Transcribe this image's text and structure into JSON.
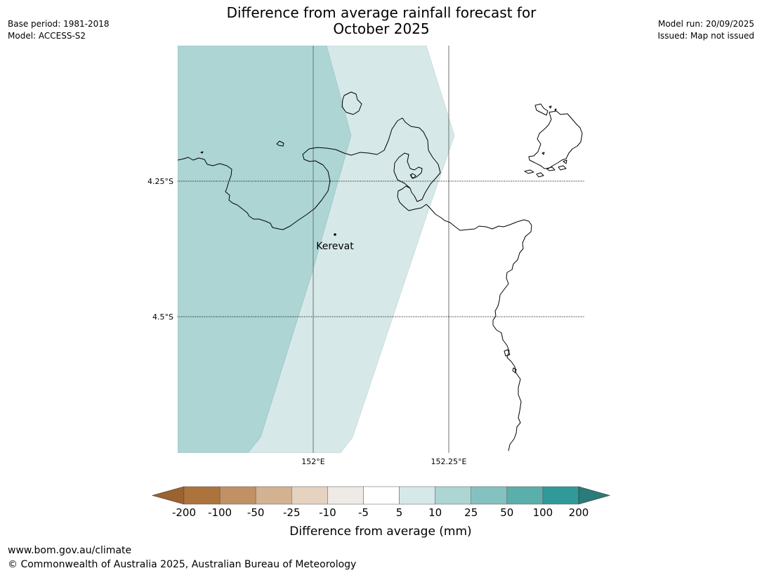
{
  "title_line1": "Difference from average rainfall forecast for",
  "title_line2": "October 2025",
  "meta": {
    "base_period": "Base period: 1981-2018",
    "model": "Model: ACCESS-S2",
    "model_run": "Model run: 20/09/2025",
    "issued": "Issued: Map not issued"
  },
  "map": {
    "lat_labels": [
      "4.25°S",
      "4.5°S"
    ],
    "lon_labels": [
      "152°E",
      "152.25°E"
    ],
    "place_name": "Kerevat"
  },
  "legend": {
    "ticks": [
      "-200",
      "-100",
      "-50",
      "-25",
      "-10",
      "-5",
      "5",
      "10",
      "25",
      "50",
      "100",
      "200"
    ],
    "title": "Difference from average (mm)",
    "colors": [
      "#9c6230",
      "#ad733c",
      "#c19065",
      "#d3b291",
      "#e6d2c0",
      "#eeebe7",
      "#ffffff",
      "#d6e9e8",
      "#acd5d4",
      "#84c2c0",
      "#5aaeac",
      "#319a98",
      "#2a7b79"
    ]
  },
  "footer": {
    "url": "www.bom.gov.au/climate",
    "copyright": "© Commonwealth of Australia 2025, Australian Bureau of Meteorology"
  }
}
